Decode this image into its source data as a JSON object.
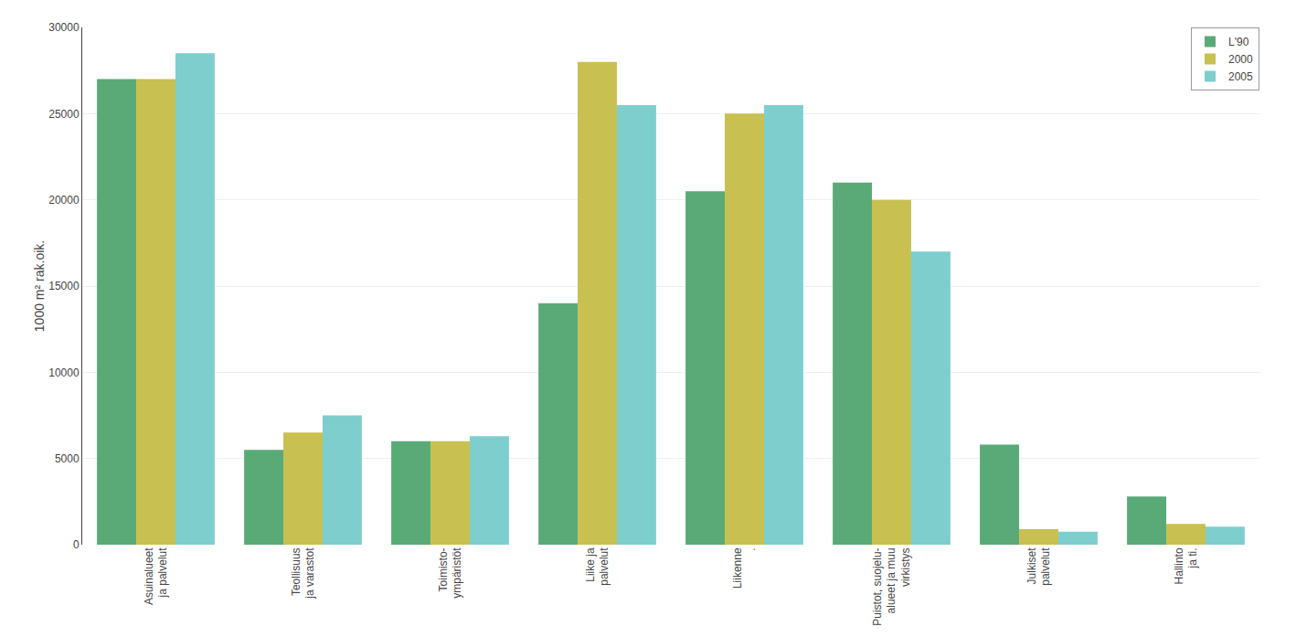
{
  "chart_data": {
    "type": "bar",
    "categories": [
      "Asuinalueet\nja palvelut",
      "Teollisuus\nja varastot",
      "Toimisto-\nympäristöt",
      "Liike ja\npalvelut",
      "Liikenne\n.",
      "Puistot, suojelu-\nalueet ja muu\nvirkistys",
      "Julkiset\npalvelut",
      "Hallinto\nja ti."
    ],
    "series": [
      {
        "name": "L'90",
        "color": "#5aaa78",
        "values": [
          27000,
          5500,
          6000,
          14000,
          20500,
          21000,
          5800,
          2800
        ]
      },
      {
        "name": "2000",
        "color": "#c8c050",
        "values": [
          27000,
          6500,
          6000,
          28000,
          25000,
          20000,
          900,
          1200
        ]
      },
      {
        "name": "2005",
        "color": "#7ecece",
        "values": [
          28500,
          7500,
          6300,
          25500,
          25500,
          17000,
          750,
          1050
        ]
      }
    ],
    "ylabel": "1000 m² rak.oik.",
    "ylim": [
      0,
      30000
    ],
    "yticks": [
      0,
      5000,
      10000,
      15000,
      20000,
      25000,
      30000
    ],
    "grid": true,
    "legend": "upper right"
  }
}
